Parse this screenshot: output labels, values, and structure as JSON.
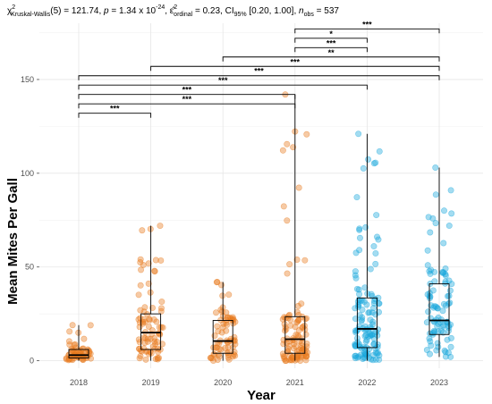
{
  "chart_data": {
    "type": "box",
    "subtitle": {
      "chi": "χ",
      "chi_sup": "2",
      "test_sub": "Kruskal-Wallis",
      "df_text": "(5) = 121.74, ",
      "p_italic": "p",
      "p_text": " = 1.34 x 10",
      "p_exp": "-24",
      "eps": "ε̂",
      "eps_sup": "2",
      "eps_sub": "ordinal",
      "eps_text": " = 0.23, CI",
      "ci_sub": "95%",
      "ci_text": " [0.20, 1.00], ",
      "n_italic": "n",
      "n_sub": "obs",
      "n_text": " = 537"
    },
    "xlabel": "Year",
    "ylabel": "Mean Mites Per Gall",
    "categories": [
      "2018",
      "2019",
      "2020",
      "2021",
      "2022",
      "2023"
    ],
    "ylim": [
      -4,
      180
    ],
    "y_ticks": [
      0,
      50,
      100,
      150
    ],
    "colors": [
      "#E87A1E",
      "#E87A1E",
      "#E87A1E",
      "#E87A1E",
      "#1AA7DD",
      "#1AA7DD"
    ],
    "grid": true,
    "boxes": [
      {
        "category": "2018",
        "min": 0,
        "q1": 1.5,
        "median": 3,
        "q3": 6,
        "max": 19,
        "n": 60
      },
      {
        "category": "2019",
        "min": 0,
        "q1": 6,
        "median": 15,
        "q3": 25,
        "max": 72,
        "n": 80
      },
      {
        "category": "2020",
        "min": 0,
        "q1": 4,
        "median": 10.5,
        "q3": 21.5,
        "max": 42,
        "n": 70
      },
      {
        "category": "2021",
        "min": 0,
        "q1": 4,
        "median": 11.5,
        "q3": 23.5,
        "max": 142,
        "n": 105
      },
      {
        "category": "2022",
        "min": 0,
        "q1": 7,
        "median": 17,
        "q3": 33.5,
        "max": 121,
        "n": 130
      },
      {
        "category": "2023",
        "min": 2,
        "q1": 14,
        "median": 21.5,
        "q3": 41,
        "max": 103,
        "n": 92
      }
    ],
    "significance": [
      {
        "from": "2021",
        "to": "2023",
        "y": 177,
        "label": "***"
      },
      {
        "from": "2021",
        "to": "2022",
        "y": 172,
        "label": "*"
      },
      {
        "from": "2021",
        "to": "2022",
        "y": 167,
        "label": "***"
      },
      {
        "from": "2020",
        "to": "2023",
        "y": 162,
        "label": "**"
      },
      {
        "from": "2019",
        "to": "2023",
        "y": 157,
        "label": "***"
      },
      {
        "from": "2018",
        "to": "2023",
        "y": 152,
        "label": "***"
      },
      {
        "from": "2018",
        "to": "2022",
        "y": 147,
        "label": "***"
      },
      {
        "from": "2018",
        "to": "2021",
        "y": 142,
        "label": "***"
      },
      {
        "from": "2018",
        "to": "2021",
        "y": 137,
        "label": "***"
      },
      {
        "from": "2018",
        "to": "2019",
        "y": 132,
        "label": "***"
      }
    ]
  }
}
